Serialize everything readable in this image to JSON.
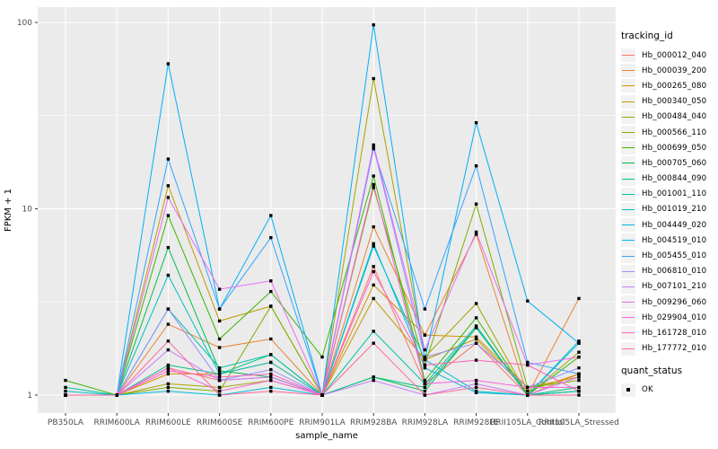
{
  "figure": {
    "y_axis": {
      "title": "FPKM + 1",
      "tick_labels": [
        "100",
        "10",
        "1"
      ]
    },
    "x_axis": {
      "title": "sample_name"
    },
    "legend_tracking": {
      "title": "tracking_id"
    },
    "legend_quant": {
      "title": "quant_status",
      "ok_label": "OK"
    },
    "panel_background": "#EBEBEB",
    "gridline_color": "#FFFFFF",
    "axis_text_color": "#4D4D4D",
    "point_color": "#000000"
  },
  "chart_data": {
    "type": "line",
    "title": "",
    "xlabel": "sample_name",
    "ylabel": "FPKM + 1",
    "y_scale": "log10",
    "ylim": [
      0.82,
      118
    ],
    "y_ticks": [
      1,
      10,
      100
    ],
    "y_minor_breaks": [
      3.1623,
      31.6228
    ],
    "grid": "white major and minor on grey panel",
    "legend_position": "right",
    "point_marker": {
      "legend": "quant_status",
      "label": "OK",
      "shape": "square",
      "color": "#000000"
    },
    "categories": [
      "PB350LA",
      "RRIM600LA",
      "RRIM600LE",
      "RRIM600SE",
      "RRIM600PE",
      "RRIM901LA",
      "RRIM928BA",
      "RRIM928LA",
      "RRIM928LE",
      "RRII105LA_Control",
      "RRII105LA_Stressed"
    ],
    "series": [
      {
        "name": "Hb_000012_040",
        "color": "#F8766D",
        "values": [
          1,
          1,
          1.4,
          1.2,
          1.25,
          1,
          4.9,
          1.15,
          1.9,
          1,
          1.3
        ]
      },
      {
        "name": "Hb_000039_200",
        "color": "#EA8331",
        "values": [
          1,
          1,
          2.4,
          1.8,
          2.0,
          1,
          8.0,
          2.1,
          7.3,
          1,
          3.3
        ]
      },
      {
        "name": "Hb_000265_080",
        "color": "#D89000",
        "values": [
          1,
          1,
          1.3,
          1.3,
          1.5,
          1,
          3.9,
          2.1,
          2.05,
          1.1,
          1.25
        ]
      },
      {
        "name": "Hb_000340_050",
        "color": "#C09B00",
        "values": [
          1,
          1,
          13.3,
          2.5,
          3.0,
          1,
          3.3,
          1.55,
          2.0,
          1.05,
          1.3
        ]
      },
      {
        "name": "Hb_000484_040",
        "color": "#A3A500",
        "values": [
          1,
          1,
          1.15,
          1.1,
          1.2,
          1,
          50.0,
          1.6,
          3.1,
          1,
          1.7
        ]
      },
      {
        "name": "Hb_000566_110",
        "color": "#7CAE00",
        "values": [
          1,
          1,
          1.1,
          1.05,
          3.0,
          1,
          13.0,
          1.45,
          10.6,
          1.1,
          1.2
        ]
      },
      {
        "name": "Hb_000699_050",
        "color": "#39B600",
        "values": [
          1.2,
          1,
          9.2,
          2.0,
          3.6,
          1.6,
          15.0,
          1.2,
          2.6,
          1,
          1.6
        ]
      },
      {
        "name": "Hb_000705_060",
        "color": "#00BB4E",
        "values": [
          1,
          1,
          6.2,
          1.35,
          1.25,
          1,
          1.25,
          1.05,
          2.3,
          1,
          1.05
        ]
      },
      {
        "name": "Hb_000844_090",
        "color": "#00C087",
        "values": [
          1,
          1,
          1.45,
          1.3,
          1.65,
          1,
          1.25,
          1.1,
          2.3,
          1,
          1.1
        ]
      },
      {
        "name": "Hb_001001_110",
        "color": "#00C1A3",
        "values": [
          1.1,
          1,
          2.9,
          1.4,
          1.65,
          1,
          2.2,
          1.15,
          2.35,
          1,
          1.05
        ]
      },
      {
        "name": "Hb_001019_210",
        "color": "#00BFC4",
        "values": [
          1.05,
          1,
          4.4,
          1.3,
          1.5,
          1,
          6.3,
          1.55,
          1.05,
          1,
          1.95
        ]
      },
      {
        "name": "Hb_004449_020",
        "color": "#00BAE0",
        "values": [
          1,
          1,
          1.05,
          1,
          1.1,
          1,
          6.5,
          1.4,
          1.03,
          1,
          1.9
        ]
      },
      {
        "name": "Hb_004519_010",
        "color": "#00B0F6",
        "values": [
          1,
          1,
          60.0,
          2.9,
          9.2,
          1,
          97.0,
          1.55,
          29.0,
          3.2,
          1.9
        ]
      },
      {
        "name": "Hb_005455_010",
        "color": "#35A2FF",
        "values": [
          1,
          1,
          18.5,
          2.9,
          7.0,
          1,
          21.0,
          2.9,
          17.0,
          1.5,
          1.3
        ]
      },
      {
        "name": "Hb_006810_010",
        "color": "#9590FF",
        "values": [
          1,
          1,
          2.9,
          1.2,
          1.37,
          1,
          21.5,
          1.6,
          1.9,
          1.1,
          1.4
        ]
      },
      {
        "name": "Hb_007101_210",
        "color": "#C77CFF",
        "values": [
          1,
          1,
          1.75,
          1.2,
          1.25,
          1,
          1.2,
          1,
          1.15,
          1,
          1.25
        ]
      },
      {
        "name": "Hb_009296_060",
        "color": "#E76BF3",
        "values": [
          1,
          1,
          11.5,
          3.7,
          4.1,
          1,
          22.0,
          1.75,
          7.5,
          1.45,
          1.6
        ]
      },
      {
        "name": "Hb_029904_010",
        "color": "#FA62DB",
        "values": [
          1,
          1,
          1.4,
          1.05,
          1.2,
          1,
          13.5,
          1.15,
          1.2,
          1.1,
          1.1
        ]
      },
      {
        "name": "Hb_161728_010",
        "color": "#FF62BC",
        "values": [
          1,
          1,
          1.35,
          1.25,
          1.3,
          1,
          4.6,
          1.45,
          1.54,
          1.45,
          1.05
        ]
      },
      {
        "name": "Hb_177772_010",
        "color": "#FF6A98",
        "values": [
          1,
          1,
          1.95,
          1,
          1.05,
          1,
          1.9,
          1,
          1.1,
          1,
          1
        ]
      }
    ]
  }
}
